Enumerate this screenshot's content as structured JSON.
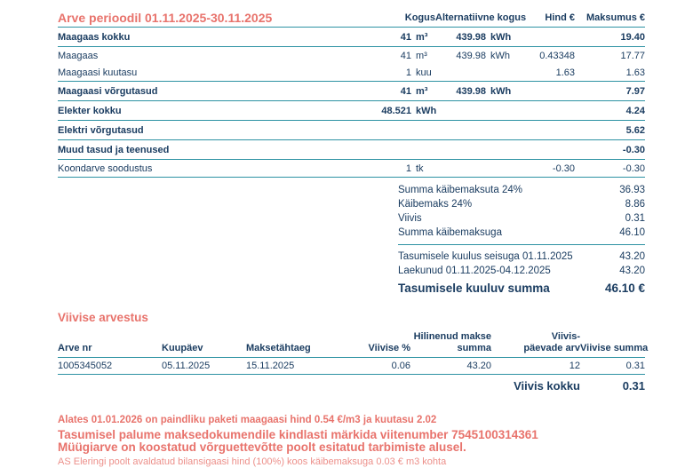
{
  "colors": {
    "accent_red": "#e8736c",
    "text_navy": "#1b3d61",
    "rule_teal": "#2d92a3"
  },
  "invoice": {
    "title": "Arve perioodil 01.11.2025-30.11.2025",
    "columns": {
      "kogus": "Kogus",
      "alternatiivne": "Alternatiivne kogus",
      "hind": "Hind €",
      "maksumus": "Maksumus €"
    },
    "rows": [
      {
        "label": "Maagaas kokku",
        "kogus": "41",
        "kogus_unit": "m³",
        "alt": "439.98",
        "alt_unit": "kWh",
        "maksumus": "19.40"
      },
      {
        "label": "Maagaas",
        "kogus": "41",
        "kogus_unit": "m³",
        "alt": "439.98",
        "alt_unit": "kWh",
        "hind": "0.43348",
        "maksumus": "17.77"
      },
      {
        "label": "Maagaasi kuutasu",
        "kogus": "1",
        "kogus_unit": "kuu",
        "hind": "1.63",
        "maksumus": "1.63"
      },
      {
        "label": "Maagaasi võrgutasud",
        "kogus": "41",
        "kogus_unit": "m³",
        "alt": "439.98",
        "alt_unit": "kWh",
        "maksumus": "7.97"
      },
      {
        "label": "Elekter kokku",
        "kogus": "48.521",
        "kogus_unit": "kWh",
        "maksumus": "4.24"
      },
      {
        "label": "Elektri võrgutasud",
        "maksumus": "5.62"
      },
      {
        "label": "Muud tasud ja teenused",
        "maksumus": "-0.30"
      },
      {
        "label": "Koondarve soodustus",
        "kogus": "1",
        "kogus_unit": "tk",
        "hind": "-0.30",
        "maksumus": "-0.30"
      }
    ],
    "summary": [
      {
        "label": "Summa käibemaksuta 24%",
        "value": "36.93"
      },
      {
        "label": "Käibemaks 24%",
        "value": "8.86"
      },
      {
        "label": "Viivis",
        "value": "0.31"
      },
      {
        "label": "Summa käibemaksuga",
        "value": "46.10"
      },
      {
        "label": "Tasumisele kuulus seisuga 01.11.2025",
        "value": "43.20"
      },
      {
        "label": "Laekunud 01.11.2025-04.12.2025",
        "value": "43.20"
      },
      {
        "label": "Tasumisele kuuluv summa",
        "value": "46.10 €"
      }
    ]
  },
  "late_fee": {
    "title": "Viivise arvestus",
    "headers": {
      "arve_nr": "Arve nr",
      "kuupaev": "Kuupäev",
      "maksetahtaeg": "Maksetähtaeg",
      "viivise_pct": "Viivise %",
      "hilinenud_line1": "Hilinenud makse",
      "hilinenud_line2": "summa",
      "paevade_line1": "Viivis-",
      "paevade_line2": "päevade arv",
      "viivise_summa": "Viivise summa"
    },
    "row": {
      "arve_nr": "1005345052",
      "kuupaev": "05.11.2025",
      "maksetahtaeg": "15.11.2025",
      "viivise_pct": "0.06",
      "hilinenud_summa": "43.20",
      "paevade_arv": "12",
      "viivise_summa": "0.31"
    },
    "total_label": "Viivis kokku",
    "total_value": "0.31"
  },
  "notes": {
    "line1": "Alates 01.01.2026 on paindliku paketi maagaasi hind 0.54 €/m3 ja kuutasu 2.02",
    "line2": "Tasumisel palume maksedokumendile kindlasti märkida viitenumber 7545100314361",
    "line3": "Müügiarve on koostatud võrguettevõtte poolt esitatud tarbimiste alusel.",
    "line4": "AS Eleringi poolt avaldatud bilansigaasi hind (100%) koos käibemaksuga 0.03 € m3 kohta"
  }
}
